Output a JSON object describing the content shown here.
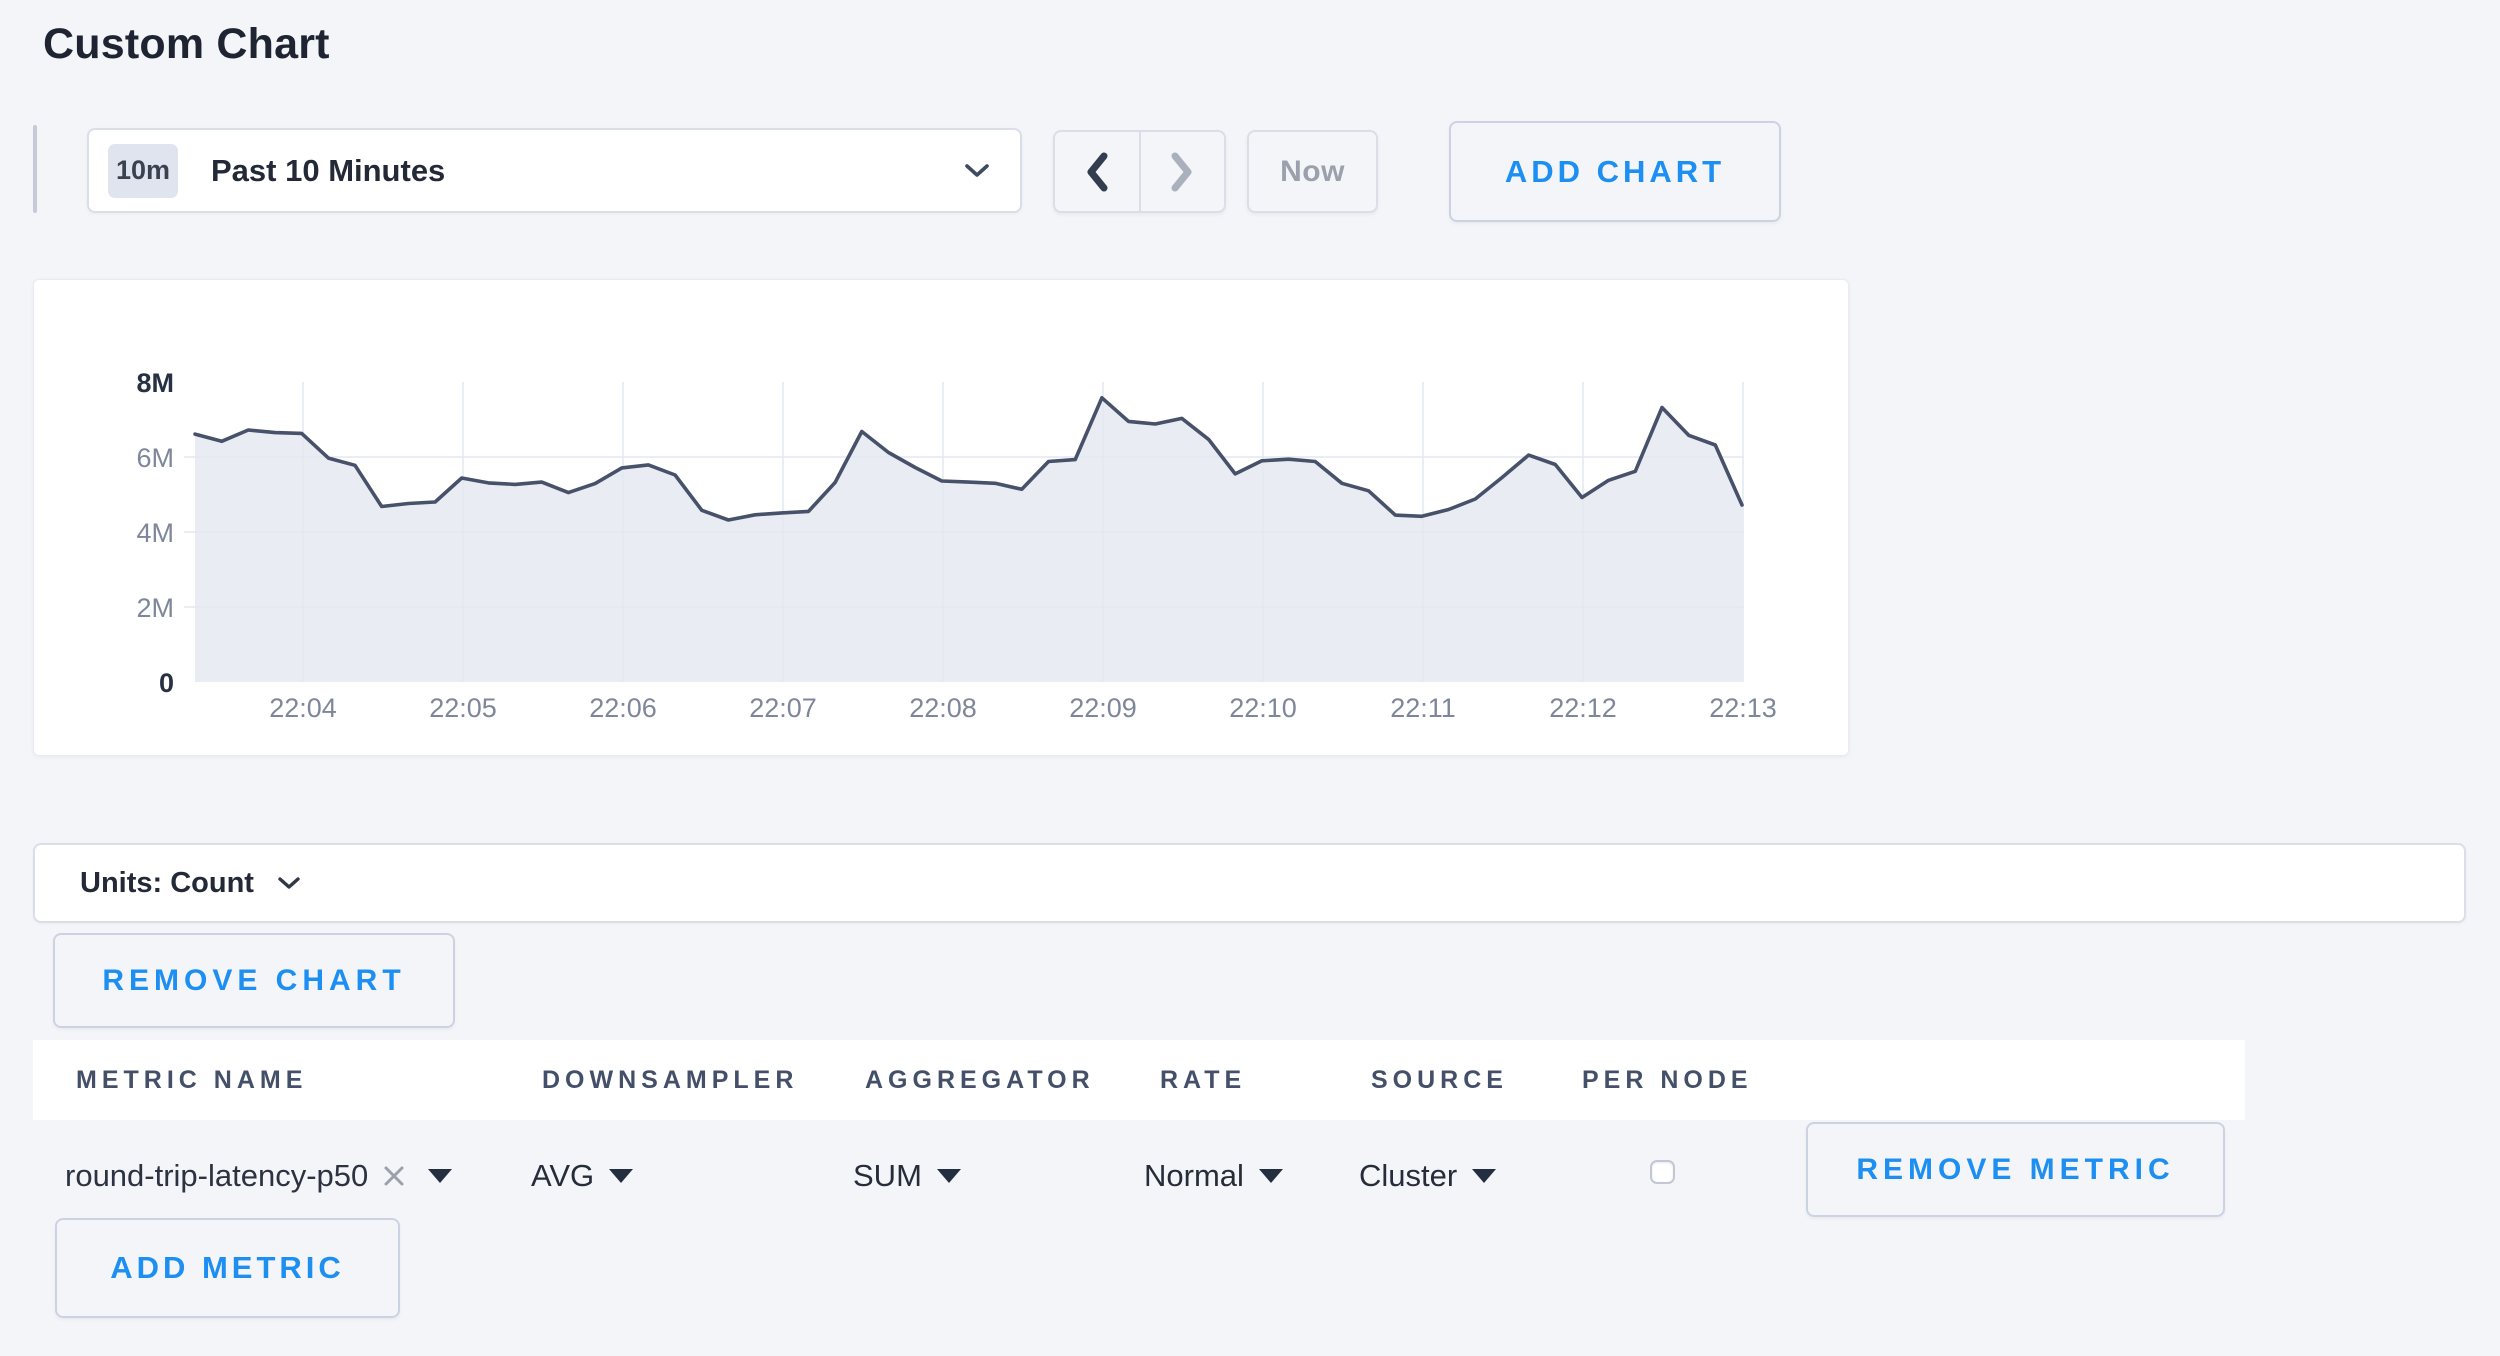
{
  "page": {
    "title": "Custom Chart"
  },
  "toolbar": {
    "time_range": {
      "badge": "10m",
      "label": "Past 10 Minutes"
    },
    "now_label": "Now",
    "add_chart_label": "ADD CHART"
  },
  "chart_data": {
    "type": "area",
    "title": "",
    "xlabel": "",
    "ylabel": "count",
    "ylim": [
      0,
      8000000
    ],
    "grid": true,
    "legend_position": "none",
    "y_ticks": [
      "0",
      "2M",
      "4M",
      "6M",
      "8M"
    ],
    "x_ticks": [
      "22:04",
      "22:05",
      "22:06",
      "22:07",
      "22:08",
      "22:09",
      "22:10",
      "22:11",
      "22:12",
      "22:13"
    ],
    "series": [
      {
        "name": "round-trip-latency-p50",
        "start_time": "22:03:20",
        "interval_seconds": 10,
        "line_color": "#47516a",
        "fill_color": "#e9ecf2",
        "values_millions": [
          6.61,
          6.42,
          6.72,
          6.65,
          6.63,
          5.97,
          5.78,
          4.68,
          4.76,
          4.8,
          5.44,
          5.31,
          5.27,
          5.33,
          5.05,
          5.29,
          5.71,
          5.79,
          5.52,
          4.58,
          4.32,
          4.46,
          4.51,
          4.55,
          5.32,
          6.68,
          6.12,
          5.72,
          5.36,
          5.33,
          5.3,
          5.14,
          5.88,
          5.93,
          7.58,
          6.95,
          6.88,
          7.03,
          6.47,
          5.55,
          5.9,
          5.94,
          5.88,
          5.3,
          5.1,
          4.45,
          4.42,
          4.6,
          4.88,
          5.45,
          6.05,
          5.8,
          4.92,
          5.38,
          5.62,
          7.32,
          6.58,
          6.32,
          4.72
        ]
      }
    ]
  },
  "units": {
    "label": "Units: Count"
  },
  "remove_chart_label": "REMOVE CHART",
  "metrics_table": {
    "columns": [
      "METRIC NAME",
      "DOWNSAMPLER",
      "AGGREGATOR",
      "RATE",
      "SOURCE",
      "PER NODE"
    ],
    "row": {
      "metric_name": "round-trip-latency-p50",
      "downsampler": "AVG",
      "aggregator": "SUM",
      "rate": "Normal",
      "source": "Cluster",
      "per_node_checked": false,
      "remove_label": "REMOVE METRIC"
    },
    "add_metric_label": "ADD METRIC"
  },
  "colors": {
    "accent_blue": "#1e8ff2",
    "line": "#47516a",
    "area_fill": "#e9ecf2",
    "grid_line": "#e3e9f1",
    "axis_label": "#7d8799",
    "axis_label_bold": "#273143"
  }
}
